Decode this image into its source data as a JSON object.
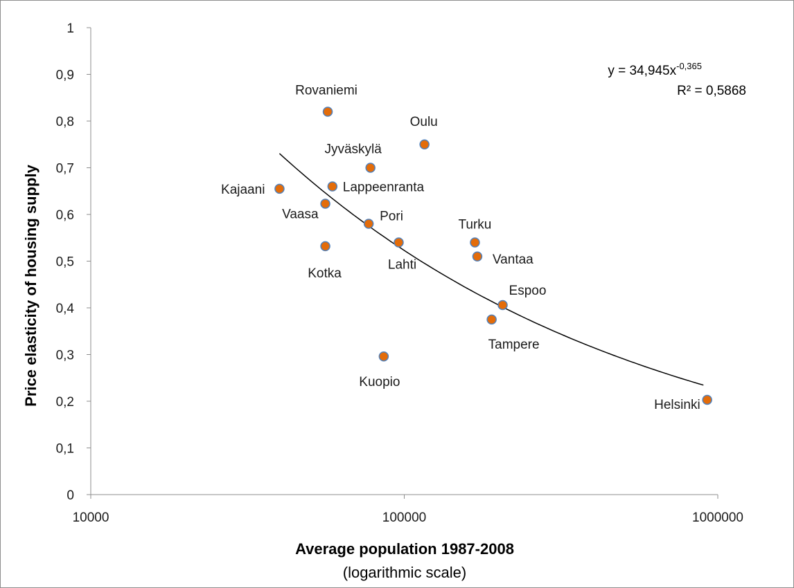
{
  "chart_data": {
    "type": "scatter",
    "title": "",
    "xlabel": "Average population 1987-2008",
    "xlabel_sub": "(logarithmic scale)",
    "ylabel": "Price elasticity of housing supply",
    "x_scale": "log",
    "xlim": [
      10000,
      1000000
    ],
    "ylim": [
      0,
      1
    ],
    "x_ticks": [
      "10000",
      "100000",
      "1000000"
    ],
    "y_ticks": [
      "0",
      "0,1",
      "0,2",
      "0,3",
      "0,4",
      "0,5",
      "0,6",
      "0,7",
      "0,8",
      "0,9",
      "1"
    ],
    "grid": false,
    "marker_color": "#E36C0A",
    "marker_edge_color": "#4F81BD",
    "trendline": {
      "type": "power",
      "a": 34.945,
      "b": -0.365,
      "x_range": [
        40000,
        900000
      ],
      "equation_text": "y = 34,945x",
      "equation_exponent": "-0,365",
      "r2_text": "R² = 0,5868",
      "color": "#000000"
    },
    "points": [
      {
        "label": "Rovaniemi",
        "x": 57000,
        "y": 0.82
      },
      {
        "label": "Oulu",
        "x": 116000,
        "y": 0.75
      },
      {
        "label": "Jyväskylä",
        "x": 78000,
        "y": 0.7
      },
      {
        "label": "Lappeenranta",
        "x": 59000,
        "y": 0.66
      },
      {
        "label": "Kajaani",
        "x": 40000,
        "y": 0.655
      },
      {
        "label": "Vaasa",
        "x": 56000,
        "y": 0.623
      },
      {
        "label": "Pori",
        "x": 77000,
        "y": 0.58
      },
      {
        "label": "Lahti",
        "x": 96000,
        "y": 0.54
      },
      {
        "label": "Turku",
        "x": 168000,
        "y": 0.54
      },
      {
        "label": "Kotka",
        "x": 56000,
        "y": 0.532
      },
      {
        "label": "Vantaa",
        "x": 171000,
        "y": 0.51
      },
      {
        "label": "Espoo",
        "x": 206000,
        "y": 0.406
      },
      {
        "label": "Tampere",
        "x": 190000,
        "y": 0.375
      },
      {
        "label": "Kuopio",
        "x": 86000,
        "y": 0.296
      },
      {
        "label": "Helsinki",
        "x": 925000,
        "y": 0.203
      }
    ]
  }
}
